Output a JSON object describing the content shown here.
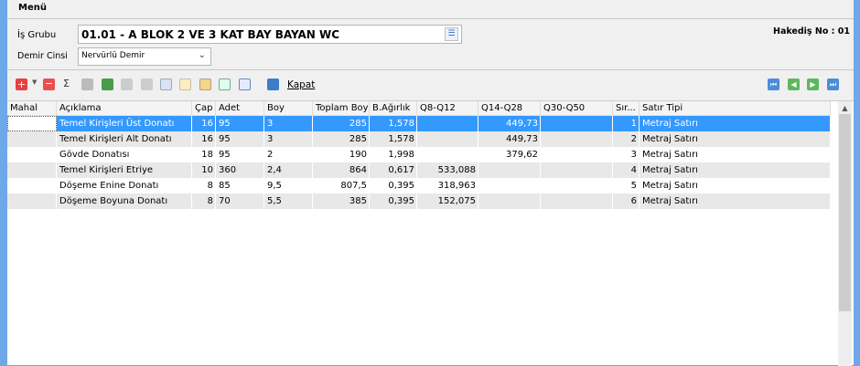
{
  "menu": {
    "label": "Menü"
  },
  "form": {
    "is_grubu_label": "İş Grubu",
    "is_grubu_value": "01.01 - A BLOK 2 VE 3 KAT BAY BAYAN WC",
    "demir_cinsi_label": "Demir Cinsi",
    "demir_cinsi_value": "Nervürlü Demir",
    "hakedis": "Hakediş No :  01"
  },
  "toolbar": {
    "kapat": "Kapat",
    "sum": "Σ"
  },
  "columns": [
    "Mahal",
    "Açıklama",
    "Çap",
    "Adet",
    "Boy",
    "Toplam Boy",
    "B.Ağırlık",
    "Q8-Q12",
    "Q14-Q28",
    "Q30-Q50",
    "Sır...",
    "Satır Tipi"
  ],
  "rows": [
    [
      "",
      "Temel Kirişleri Üst Donatı",
      "16",
      "95",
      "3",
      "285",
      "1,578",
      "",
      "449,73",
      "",
      "1",
      "Metraj Satırı"
    ],
    [
      "",
      "Temel Kirişleri Alt Donatı",
      "16",
      "95",
      "3",
      "285",
      "1,578",
      "",
      "449,73",
      "",
      "2",
      "Metraj Satırı"
    ],
    [
      "",
      "Gövde Donatısı",
      "18",
      "95",
      "2",
      "190",
      "1,998",
      "",
      "379,62",
      "",
      "3",
      "Metraj Satırı"
    ],
    [
      "",
      "Temel Kirişleri Etriye",
      "10",
      "360",
      "2,4",
      "864",
      "0,617",
      "533,088",
      "",
      "",
      "4",
      "Metraj Satırı"
    ],
    [
      "",
      "Döşeme Enine Donatı",
      "8",
      "85",
      "9,5",
      "807,5",
      "0,395",
      "318,963",
      "",
      "",
      "5",
      "Metraj Satırı"
    ],
    [
      "",
      "Döşeme Boyuna Donatı",
      "8",
      "70",
      "5,5",
      "385",
      "0,395",
      "152,075",
      "",
      "",
      "6",
      "Metraj Satırı"
    ]
  ],
  "selected_row": 0,
  "colors": {
    "selection": "#3399ff",
    "window_border": "#6fa8e8"
  }
}
